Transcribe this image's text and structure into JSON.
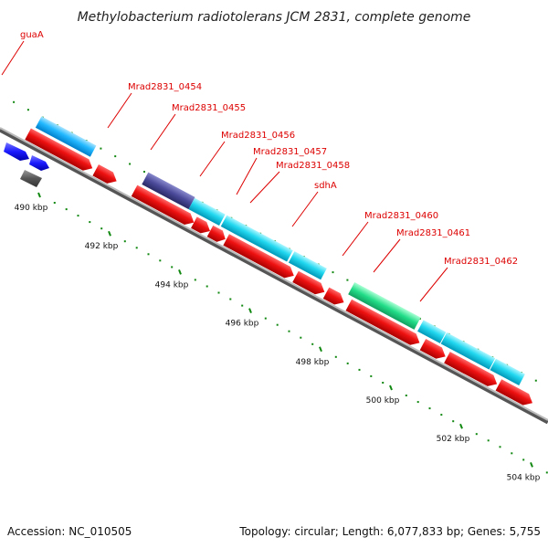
{
  "title": "Methylobacterium radiotolerans JCM 2831, complete genome",
  "footer": {
    "accession": "Accession: NC_010505",
    "summary": "Topology: circular; Length: 6,077,833 bp; Genes: 5,755"
  },
  "colors": {
    "cds_forward": "#ee1111",
    "cds_reverse_a": "#00c8e8",
    "cds_reverse_b": "#14b8ff",
    "gc_purple": "#4a4a9a",
    "rrna_green": "#22dd88",
    "blue_gene": "#1a1aff",
    "gray_gene": "#555555",
    "backbone": "#888888",
    "tick": "#118811",
    "label": "#dd0000"
  },
  "chart_data": {
    "type": "genome_map",
    "kbp_marks": [
      {
        "kbp": 490,
        "label": "490 kbp"
      },
      {
        "kbp": 492,
        "label": "492 kbp"
      },
      {
        "kbp": 494,
        "label": "494 kbp"
      },
      {
        "kbp": 496,
        "label": "496 kbp"
      },
      {
        "kbp": 498,
        "label": "498 kbp"
      },
      {
        "kbp": 500,
        "label": "500 kbp"
      },
      {
        "kbp": 502,
        "label": "502 kbp"
      },
      {
        "kbp": 504,
        "label": "504 kbp"
      }
    ],
    "gene_labels": [
      "guaA",
      "Mrad2831_0454",
      "Mrad2831_0455",
      "Mrad2831_0456",
      "Mrad2831_0457",
      "Mrad2831_0458",
      "sdhA",
      "Mrad2831_0460",
      "Mrad2831_0461",
      "Mrad2831_0462"
    ]
  }
}
